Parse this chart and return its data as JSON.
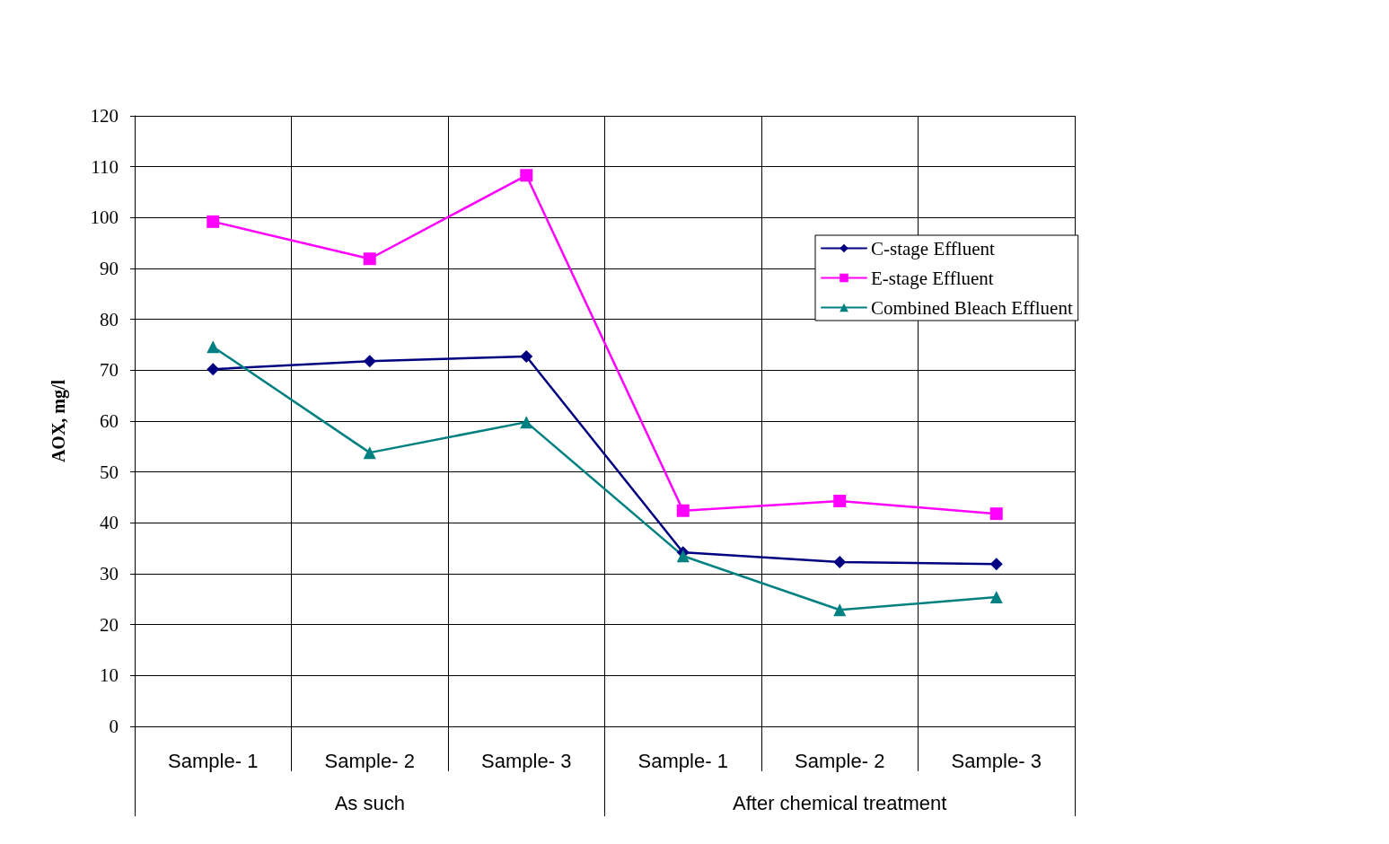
{
  "chart_data": {
    "type": "line",
    "ylabel": "AOX, mg/l",
    "categories": [
      "Sample- 1",
      "Sample- 2",
      "Sample- 3",
      "Sample- 1",
      "Sample- 2",
      "Sample- 3"
    ],
    "annotations": [
      "As such",
      "After chemical treatment"
    ],
    "series": [
      {
        "name": "C-stage Effluent",
        "color": "#000080",
        "marker": "diamond",
        "values": [
          70.2,
          71.8,
          72.7,
          34.2,
          32.3,
          31.9
        ]
      },
      {
        "name": "E-stage Effluent",
        "color": "#ff00ff",
        "marker": "square",
        "values": [
          99.2,
          91.9,
          108.3,
          42.4,
          44.3,
          41.8
        ]
      },
      {
        "name": "Combined Bleach Effluent",
        "color": "#008080",
        "marker": "triangle",
        "values": [
          74.6,
          53.8,
          59.8,
          33.5,
          22.9,
          25.4
        ]
      }
    ],
    "ylim": [
      0,
      120
    ],
    "yticks": [
      0,
      10,
      20,
      30,
      40,
      50,
      60,
      70,
      80,
      90,
      100,
      110,
      120
    ],
    "grid": true,
    "legend": "right"
  }
}
